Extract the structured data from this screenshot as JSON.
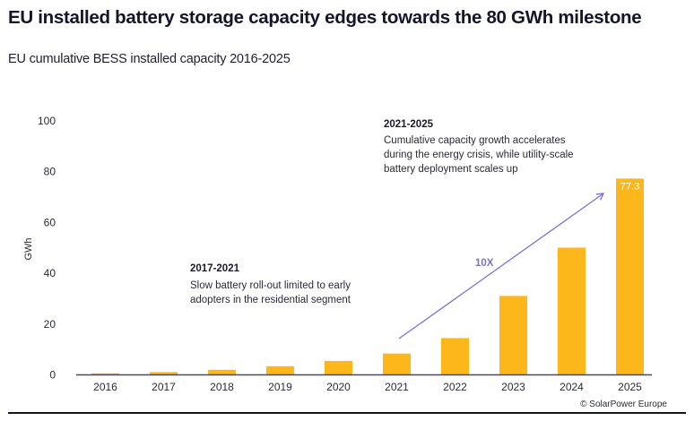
{
  "chart_data": {
    "type": "bar",
    "title": "EU installed battery storage capacity edges towards the 80 GWh milestone",
    "subtitle": "EU cumulative BESS installed capacity 2016-2025",
    "xlabel": "",
    "ylabel": "GWh",
    "ylim": [
      0,
      100
    ],
    "yticks": [
      0,
      20,
      40,
      60,
      80,
      100
    ],
    "grid": false,
    "categories": [
      "2016",
      "2017",
      "2018",
      "2019",
      "2020",
      "2021",
      "2022",
      "2023",
      "2024",
      "2025"
    ],
    "values": [
      0.6,
      1.1,
      2.0,
      3.4,
      5.5,
      8.4,
      14.5,
      31.1,
      50.1,
      77.3
    ],
    "data_labels": [
      {
        "category": "2025",
        "text": "77.3"
      }
    ],
    "bar_color": "#fdb71a",
    "axis_color": "#4a4a5a",
    "annotations": [
      {
        "heading": "2017-2021",
        "lines": [
          "Slow battery roll-out limited to early",
          "adopters in the residential segment"
        ]
      },
      {
        "heading": "2021-2025",
        "lines": [
          "Cumulative capacity growth accelerates",
          "during the energy crisis, while utility-scale",
          "battery deployment scales up"
        ]
      }
    ],
    "arrow": {
      "label": "10X",
      "from_category": "2021",
      "to_category": "2025",
      "color": "#7b6fd6"
    }
  },
  "source": "© SolarPower Europe"
}
